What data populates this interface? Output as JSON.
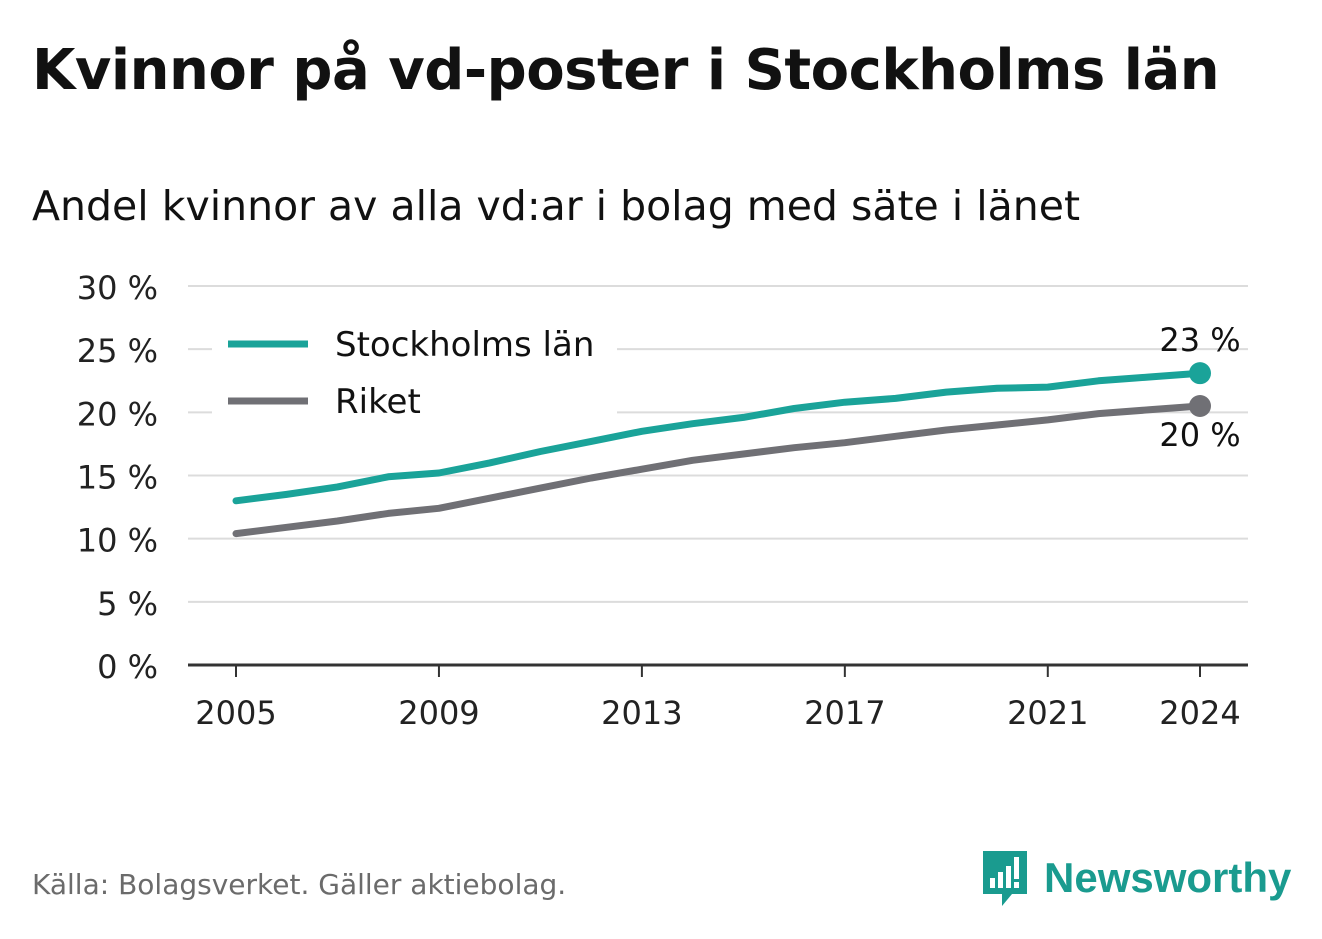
{
  "title": "Kvinnor på vd-poster i Stockholms län",
  "subtitle": "Andel kvinnor av alla vd:ar i bolag med säte i länet",
  "source": "Källa: Bolagsverket. Gäller aktiebolag.",
  "brand": {
    "name": "Newsworthy",
    "color": "#1a9b8f",
    "icon": "bar-chart-logo-icon"
  },
  "chart_data": {
    "type": "line",
    "y_tick_labels": [
      "0 %",
      "5 %",
      "10 %",
      "15 %",
      "20 %",
      "25 %",
      "30 %"
    ],
    "y_ticks": [
      0,
      5,
      10,
      15,
      20,
      25,
      30
    ],
    "x_ticks": [
      2005,
      2009,
      2013,
      2017,
      2021,
      2024
    ],
    "x_tick_labels": [
      "2005",
      "2009",
      "2013",
      "2017",
      "2021",
      "2024"
    ],
    "ylim": [
      0,
      30
    ],
    "xlim": [
      2004,
      2025
    ],
    "grid": true,
    "legend_position": "top-left",
    "x": [
      2005,
      2006,
      2007,
      2008,
      2009,
      2010,
      2011,
      2012,
      2013,
      2014,
      2015,
      2016,
      2017,
      2018,
      2019,
      2020,
      2021,
      2022,
      2023,
      2024
    ],
    "series": [
      {
        "name": "Stockholms län",
        "color": "#1aa399",
        "values": [
          13.0,
          13.5,
          14.1,
          14.9,
          15.2,
          16.0,
          16.9,
          17.7,
          18.5,
          19.1,
          19.6,
          20.3,
          20.8,
          21.1,
          21.6,
          21.9,
          22.0,
          22.5,
          22.8,
          23.1
        ],
        "end_label": "23 %"
      },
      {
        "name": "Riket",
        "color": "#707075",
        "values": [
          10.4,
          10.9,
          11.4,
          12.0,
          12.4,
          13.2,
          14.0,
          14.8,
          15.5,
          16.2,
          16.7,
          17.2,
          17.6,
          18.1,
          18.6,
          19.0,
          19.4,
          19.9,
          20.2,
          20.5
        ],
        "end_label": "20 %"
      }
    ]
  }
}
